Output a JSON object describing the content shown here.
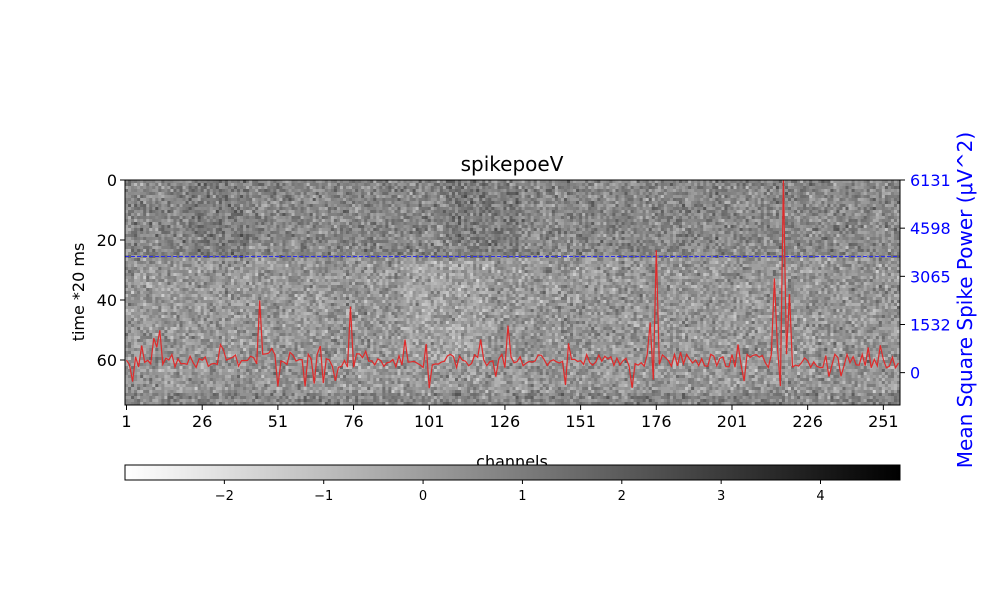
{
  "chart_data": {
    "type": "heatmap",
    "title": "spikepoeV",
    "xlabel": "channels",
    "ylabel": "time *20 ms",
    "y2label": "Mean Square Spike Power (μV^2)",
    "x_ticks": [
      "1",
      "26",
      "51",
      "76",
      "101",
      "126",
      "151",
      "176",
      "201",
      "226",
      "251"
    ],
    "y_ticks": [
      "0",
      "20",
      "40",
      "60"
    ],
    "y2_ticks": [
      "6131",
      "4598",
      "3065",
      "1532",
      "0"
    ],
    "colorbar_ticks": [
      "−2",
      "−1",
      "0",
      "1",
      "2",
      "3",
      "4"
    ],
    "x_range": [
      1,
      256
    ],
    "y_range": [
      0,
      75
    ],
    "y2_range": [
      -1030,
      6131
    ],
    "colorbar_range": [
      -3,
      4.8
    ],
    "colormap": "gray_r (white low, black high)",
    "n_channels": 256,
    "n_time_bins": 75,
    "reference_line": {
      "value": 25.5,
      "color": "#2a2aee",
      "style": "dashed"
    },
    "heatmap_note": "noisy grayscale z-scored values, darker band for time 0–25",
    "series": [
      {
        "name": "",
        "color": "#e02a2a",
        "values_note": "mean square spike power per channel, mostly 0–800 with peaks",
        "peaks": [
          {
            "channel": 10,
            "value": 1100
          },
          {
            "channel": 12,
            "value": 1350
          },
          {
            "channel": 45,
            "value": 2300
          },
          {
            "channel": 75,
            "value": 2100
          },
          {
            "channel": 93,
            "value": 1050
          },
          {
            "channel": 127,
            "value": 1500
          },
          {
            "channel": 176,
            "value": 3900
          },
          {
            "channel": 174,
            "value": 1600
          },
          {
            "channel": 203,
            "value": 900
          },
          {
            "channel": 215,
            "value": 3000
          },
          {
            "channel": 218,
            "value": 6131
          },
          {
            "channel": 220,
            "value": 2500
          }
        ]
      }
    ]
  }
}
